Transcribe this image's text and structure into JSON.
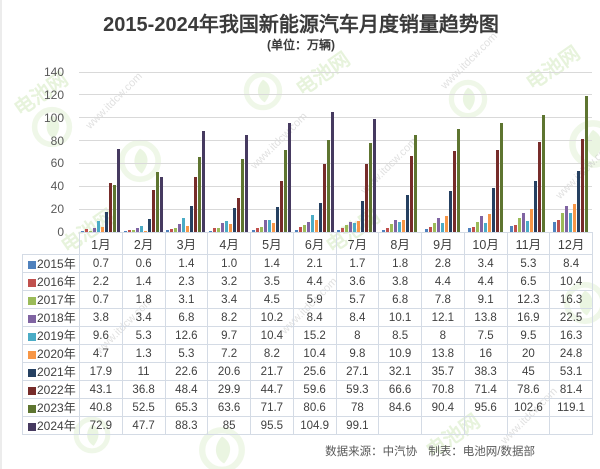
{
  "title": "2015-2024年我国新能源汽车月度销量趋势图",
  "subtitle": "(单位：万辆)",
  "footer": {
    "source": "数据来源：中汽协",
    "maker": "制表：电池网/数据部"
  },
  "watermark": {
    "brand": "电池网",
    "url": "www.itdcw.com"
  },
  "chart_data": {
    "type": "bar",
    "title": "2015-2024年我国新能源汽车月度销量趋势图",
    "subtitle": "(单位：万辆)",
    "unit": "万辆",
    "categories": [
      "1月",
      "2月",
      "3月",
      "4月",
      "5月",
      "6月",
      "7月",
      "8月",
      "9月",
      "10月",
      "11月",
      "12月"
    ],
    "ylim": [
      0,
      140
    ],
    "yticks": [
      0,
      20,
      40,
      60,
      80,
      100,
      120,
      140
    ],
    "grid": true,
    "legend_position": "table-rows-left",
    "series": [
      {
        "name": "2015年",
        "color": "#4F81BD",
        "values": [
          0.7,
          0.6,
          1.4,
          1.0,
          1.4,
          2.1,
          1.7,
          1.8,
          2.8,
          3.4,
          5.3,
          8.4
        ]
      },
      {
        "name": "2016年",
        "color": "#C0504D",
        "values": [
          2.2,
          1.4,
          2.3,
          3.2,
          3.5,
          4.4,
          3.6,
          3.8,
          4.4,
          4.4,
          6.5,
          10.4
        ]
      },
      {
        "name": "2017年",
        "color": "#9BBB59",
        "values": [
          0.7,
          1.8,
          3.1,
          3.4,
          4.5,
          5.9,
          5.7,
          6.8,
          7.8,
          9.1,
          12.3,
          16.3
        ]
      },
      {
        "name": "2018年",
        "color": "#8064A2",
        "values": [
          3.8,
          3.4,
          6.8,
          8.2,
          10.2,
          8.4,
          8.4,
          10.1,
          12.1,
          13.8,
          16.9,
          22.5
        ]
      },
      {
        "name": "2019年",
        "color": "#4BACC6",
        "values": [
          9.6,
          5.3,
          12.6,
          9.7,
          10.4,
          15.2,
          8,
          8.5,
          8,
          7.5,
          9.5,
          16.3
        ]
      },
      {
        "name": "2020年",
        "color": "#F79646",
        "values": [
          4.7,
          1.3,
          5.3,
          7.2,
          8.2,
          10.4,
          9.8,
          10.9,
          13.8,
          16,
          20,
          24.8
        ]
      },
      {
        "name": "2021年",
        "color": "#254061",
        "values": [
          17.9,
          11,
          22.6,
          20.6,
          21.7,
          25.6,
          27.1,
          32.1,
          35.7,
          38.3,
          45,
          53.1
        ]
      },
      {
        "name": "2022年",
        "color": "#772C2A",
        "values": [
          43.1,
          36.8,
          48.4,
          29.9,
          44.7,
          59.6,
          59.3,
          66.6,
          70.8,
          71.4,
          78.6,
          81.4
        ]
      },
      {
        "name": "2023年",
        "color": "#5E7530",
        "values": [
          40.8,
          52.5,
          65.3,
          63.6,
          71.7,
          80.6,
          78,
          84.6,
          90.4,
          95.6,
          102.6,
          119.1
        ]
      },
      {
        "name": "2024年",
        "color": "#463A60",
        "values": [
          72.9,
          47.7,
          88.3,
          85,
          95.5,
          104.9,
          99.1,
          null,
          null,
          null,
          null,
          null
        ]
      }
    ]
  },
  "table": {
    "rows": [
      {
        "year": "2015年",
        "cells": [
          "0.7",
          "0.6",
          "1.4",
          "1.0",
          "1.4",
          "2.1",
          "1.7",
          "1.8",
          "2.8",
          "3.4",
          "5.3",
          "8.4"
        ]
      },
      {
        "year": "2016年",
        "cells": [
          "2.2",
          "1.4",
          "2.3",
          "3.2",
          "3.5",
          "4.4",
          "3.6",
          "3.8",
          "4.4",
          "4.4",
          "6.5",
          "10.4"
        ]
      },
      {
        "year": "2017年",
        "cells": [
          "0.7",
          "1.8",
          "3.1",
          "3.4",
          "4.5",
          "5.9",
          "5.7",
          "6.8",
          "7.8",
          "9.1",
          "12.3",
          "16.3"
        ]
      },
      {
        "year": "2018年",
        "cells": [
          "3.8",
          "3.4",
          "6.8",
          "8.2",
          "10.2",
          "8.4",
          "8.4",
          "10.1",
          "12.1",
          "13.8",
          "16.9",
          "22.5"
        ]
      },
      {
        "year": "2019年",
        "cells": [
          "9.6",
          "5.3",
          "12.6",
          "9.7",
          "10.4",
          "15.2",
          "8",
          "8.5",
          "8",
          "7.5",
          "9.5",
          "16.3"
        ]
      },
      {
        "year": "2020年",
        "cells": [
          "4.7",
          "1.3",
          "5.3",
          "7.2",
          "8.2",
          "10.4",
          "9.8",
          "10.9",
          "13.8",
          "16",
          "20",
          "24.8"
        ]
      },
      {
        "year": "2021年",
        "cells": [
          "17.9",
          "11",
          "22.6",
          "20.6",
          "21.7",
          "25.6",
          "27.1",
          "32.1",
          "35.7",
          "38.3",
          "45",
          "53.1"
        ]
      },
      {
        "year": "2022年",
        "cells": [
          "43.1",
          "36.8",
          "48.4",
          "29.9",
          "44.7",
          "59.6",
          "59.3",
          "66.6",
          "70.8",
          "71.4",
          "78.6",
          "81.4"
        ]
      },
      {
        "year": "2023年",
        "cells": [
          "40.8",
          "52.5",
          "65.3",
          "63.6",
          "71.7",
          "80.6",
          "78",
          "84.6",
          "90.4",
          "95.6",
          "102.6",
          "119.1"
        ]
      },
      {
        "year": "2024年",
        "cells": [
          "72.9",
          "47.7",
          "88.3",
          "85",
          "95.5",
          "104.9",
          "99.1",
          "",
          "",
          "",
          "",
          ""
        ]
      }
    ]
  }
}
